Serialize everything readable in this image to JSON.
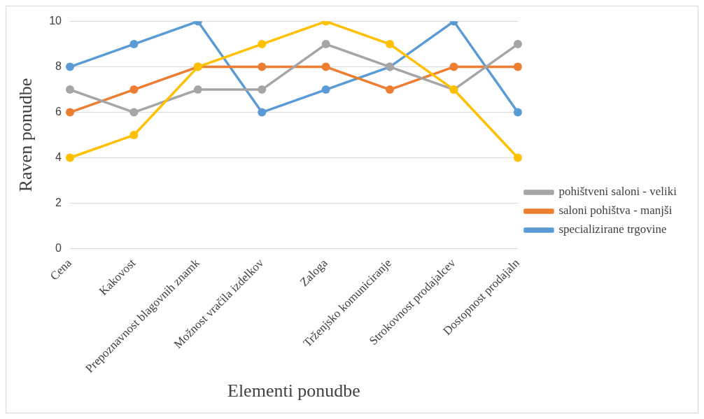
{
  "chart_data": {
    "type": "line",
    "xlabel": "Elementi ponudbe",
    "ylabel": "Raven ponudbe",
    "categories": [
      "Cena",
      "Kakovost",
      "Prepoznavnost blagovnih znamk",
      "Možnost vračila izdelkov",
      "Zaloga",
      "Trženjsko komuniciranje",
      "Strokovnost prodajalcev",
      "Dostopnost prodajaln"
    ],
    "series": [
      {
        "name": "specializirane trgovine",
        "color": "#5b9bd5",
        "values": [
          8,
          9,
          10,
          6,
          7,
          8,
          10,
          6
        ]
      },
      {
        "name": "saloni pohištva - manjši",
        "color": "#ed7d31",
        "values": [
          6,
          7,
          8,
          8,
          8,
          7,
          8,
          8
        ]
      },
      {
        "name": "pohištveni saloni - veliki",
        "color": "#a5a5a5",
        "values": [
          7,
          6,
          7,
          7,
          9,
          8,
          7,
          9
        ]
      },
      {
        "color": "#ffc000",
        "values": [
          4,
          5,
          8,
          9,
          10,
          9,
          7,
          4
        ]
      }
    ],
    "ylim": [
      0,
      10
    ],
    "yticks": [
      0,
      2,
      4,
      6,
      8,
      10
    ],
    "grid": "y",
    "legend": "right",
    "marker": "circle",
    "line_style": "solid"
  }
}
